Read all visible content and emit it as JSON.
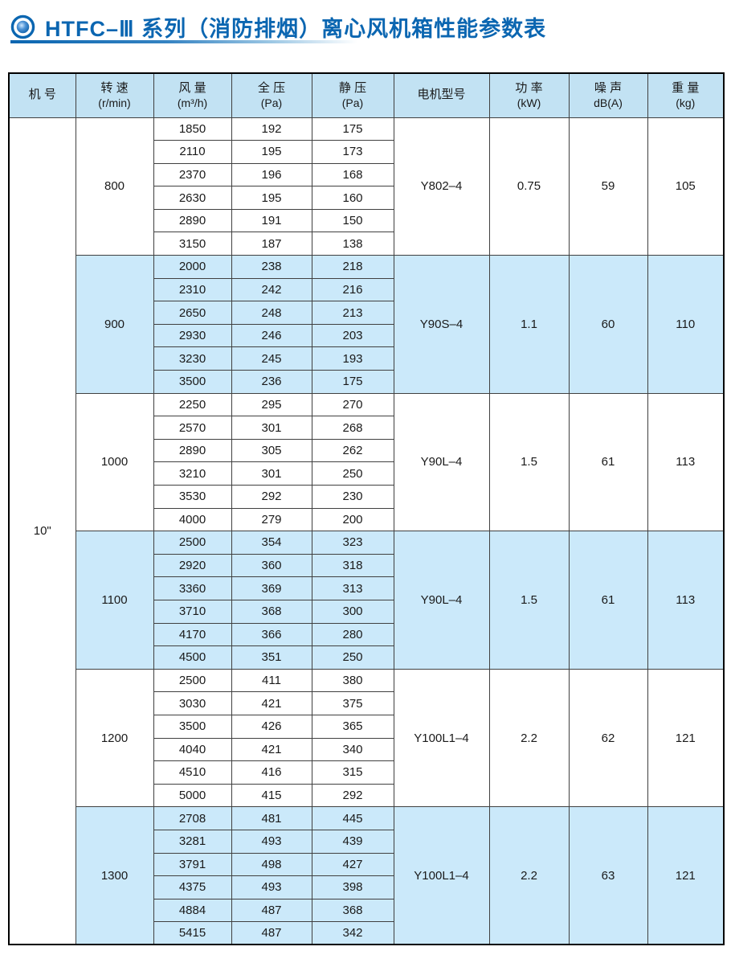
{
  "title": {
    "text": "HTFC–Ⅲ 系列（消防排烟）离心风机箱性能参数表",
    "accent_color": "#0b66b1"
  },
  "table": {
    "headers": [
      {
        "key": "machine-no",
        "label": "机 号",
        "unit": ""
      },
      {
        "key": "speed",
        "label": "转 速",
        "unit": "(r/min)"
      },
      {
        "key": "airflow",
        "label": "风 量",
        "unit": "(m³/h)"
      },
      {
        "key": "total-pressure",
        "label": "全 压",
        "unit": "(Pa)"
      },
      {
        "key": "static-pressure",
        "label": "静 压",
        "unit": "(Pa)"
      },
      {
        "key": "motor-model",
        "label": "电机型号",
        "unit": ""
      },
      {
        "key": "power",
        "label": "功 率",
        "unit": "(kW)"
      },
      {
        "key": "noise",
        "label": "噪 声",
        "unit": "dB(A)"
      },
      {
        "key": "weight",
        "label": "重 量",
        "unit": "(kg)"
      }
    ],
    "machine_no": "10\"",
    "groups": [
      {
        "speed": "800",
        "rows": [
          [
            "1850",
            "192",
            "175"
          ],
          [
            "2110",
            "195",
            "173"
          ],
          [
            "2370",
            "196",
            "168"
          ],
          [
            "2630",
            "195",
            "160"
          ],
          [
            "2890",
            "191",
            "150"
          ],
          [
            "3150",
            "187",
            "138"
          ]
        ],
        "motor": "Y802–4",
        "power": "0.75",
        "noise": "59",
        "weight": "105",
        "highlight": false
      },
      {
        "speed": "900",
        "rows": [
          [
            "2000",
            "238",
            "218"
          ],
          [
            "2310",
            "242",
            "216"
          ],
          [
            "2650",
            "248",
            "213"
          ],
          [
            "2930",
            "246",
            "203"
          ],
          [
            "3230",
            "245",
            "193"
          ],
          [
            "3500",
            "236",
            "175"
          ]
        ],
        "motor": "Y90S–4",
        "power": "1.1",
        "noise": "60",
        "weight": "110",
        "highlight": true
      },
      {
        "speed": "1000",
        "rows": [
          [
            "2250",
            "295",
            "270"
          ],
          [
            "2570",
            "301",
            "268"
          ],
          [
            "2890",
            "305",
            "262"
          ],
          [
            "3210",
            "301",
            "250"
          ],
          [
            "3530",
            "292",
            "230"
          ],
          [
            "4000",
            "279",
            "200"
          ]
        ],
        "motor": "Y90L–4",
        "power": "1.5",
        "noise": "61",
        "weight": "113",
        "highlight": false
      },
      {
        "speed": "1100",
        "rows": [
          [
            "2500",
            "354",
            "323"
          ],
          [
            "2920",
            "360",
            "318"
          ],
          [
            "3360",
            "369",
            "313"
          ],
          [
            "3710",
            "368",
            "300"
          ],
          [
            "4170",
            "366",
            "280"
          ],
          [
            "4500",
            "351",
            "250"
          ]
        ],
        "motor": "Y90L–4",
        "power": "1.5",
        "noise": "61",
        "weight": "113",
        "highlight": true
      },
      {
        "speed": "1200",
        "rows": [
          [
            "2500",
            "411",
            "380"
          ],
          [
            "3030",
            "421",
            "375"
          ],
          [
            "3500",
            "426",
            "365"
          ],
          [
            "4040",
            "421",
            "340"
          ],
          [
            "4510",
            "416",
            "315"
          ],
          [
            "5000",
            "415",
            "292"
          ]
        ],
        "motor": "Y100L1–4",
        "power": "2.2",
        "noise": "62",
        "weight": "121",
        "highlight": false
      },
      {
        "speed": "1300",
        "rows": [
          [
            "2708",
            "481",
            "445"
          ],
          [
            "3281",
            "493",
            "439"
          ],
          [
            "3791",
            "498",
            "427"
          ],
          [
            "4375",
            "493",
            "398"
          ],
          [
            "4884",
            "487",
            "368"
          ],
          [
            "5415",
            "487",
            "342"
          ]
        ],
        "motor": "Y100L1–4",
        "power": "2.2",
        "noise": "63",
        "weight": "121",
        "highlight": true
      }
    ],
    "colors": {
      "header_bg": "#c2e2f3",
      "highlight_bg": "#cbe9fa",
      "grid_line": "#404040"
    }
  }
}
